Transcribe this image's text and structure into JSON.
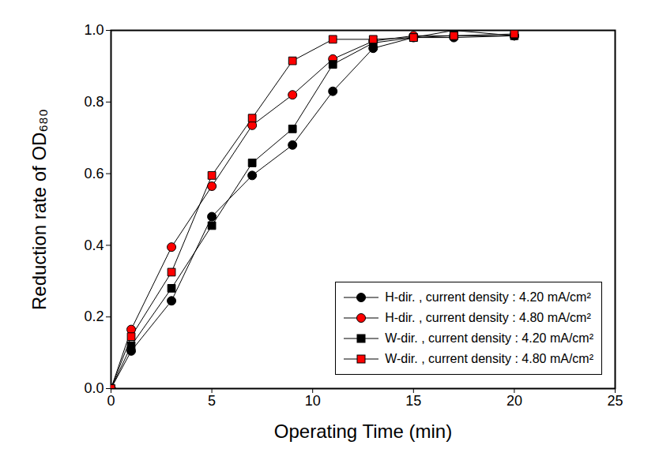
{
  "chart_data": {
    "type": "line",
    "x_label": "Operating Time (min)",
    "y_label": "Reduction rate of OD₆₈₀",
    "x": [
      0,
      1,
      3,
      5,
      7,
      9,
      11,
      13,
      15,
      17,
      20
    ],
    "series": [
      {
        "name": "H-dir. , current density : 4.20 mA/cm²",
        "color": "#000000",
        "marker": "circle",
        "values": [
          0,
          0.105,
          0.245,
          0.48,
          0.595,
          0.68,
          0.83,
          0.95,
          0.98,
          0.98,
          0.985
        ]
      },
      {
        "name": "H-dir. , current density : 4.80 mA/cm²",
        "color": "#ff0000",
        "marker": "circle",
        "values": [
          0,
          0.165,
          0.395,
          0.565,
          0.735,
          0.82,
          0.92,
          0.97,
          0.985,
          0.985,
          0.985
        ]
      },
      {
        "name": "W-dir. , current density : 4.20 mA/cm²",
        "color": "#000000",
        "marker": "square",
        "values": [
          0,
          0.12,
          0.28,
          0.455,
          0.63,
          0.725,
          0.905,
          0.965,
          0.98,
          1.0,
          0.985
        ]
      },
      {
        "name": "W-dir. , current density : 4.80 mA/cm²",
        "color": "#ff0000",
        "marker": "square",
        "values": [
          0,
          0.145,
          0.325,
          0.595,
          0.755,
          0.915,
          0.975,
          0.975,
          0.98,
          0.985,
          0.99
        ]
      }
    ],
    "xlim": [
      0,
      25
    ],
    "xticks": [
      0,
      5,
      10,
      15,
      20,
      25
    ],
    "ylim": [
      0,
      1
    ],
    "yticks": [
      {
        "value": 0,
        "label": "0.0"
      },
      0.2,
      0.4,
      0.6,
      0.8,
      {
        "value": 1,
        "label": "1.0"
      }
    ],
    "grid": false,
    "legend": "lower right"
  }
}
